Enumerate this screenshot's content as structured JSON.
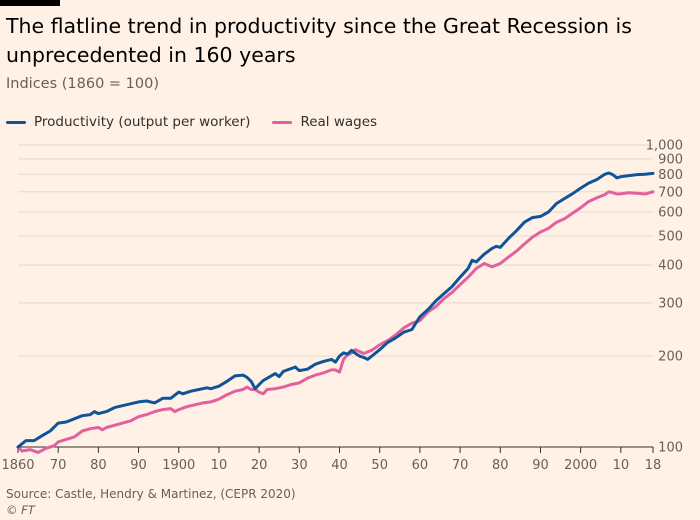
{
  "header": {
    "title": "The flatline trend in productivity since the Great Recession is unprecedented in 160 years",
    "subtitle": "Indices (1860 = 100)"
  },
  "footer": {
    "source": "Source: Castle, Hendry & Martinez, (CEPR 2020)",
    "credit": "© FT"
  },
  "colors": {
    "background": "#FFF1E5",
    "productivity": "#0F5499",
    "wages": "#E3609E",
    "grid": "#E6D9CE",
    "axis_text": "#66605C"
  },
  "chart_data": {
    "type": "line",
    "y_scale": "log",
    "ylim": [
      100,
      1000
    ],
    "xlim": [
      1860,
      2018
    ],
    "grid": "horizontal",
    "legend_position": "top-left",
    "x_tick_values": [
      1860,
      1870,
      1880,
      1890,
      1900,
      1910,
      1920,
      1930,
      1940,
      1950,
      1960,
      1970,
      1980,
      1990,
      2000,
      2010,
      2018
    ],
    "x_tick_labels": [
      "1860",
      "70",
      "80",
      "90",
      "1900",
      "10",
      "20",
      "30",
      "40",
      "50",
      "60",
      "70",
      "80",
      "90",
      "2000",
      "10",
      "18"
    ],
    "y_tick_values": [
      100,
      200,
      300,
      400,
      500,
      600,
      700,
      800,
      900,
      1000
    ],
    "y_tick_labels": [
      "100",
      "200",
      "300",
      "400",
      "500",
      "600",
      "700",
      "800",
      "900",
      "1,000"
    ],
    "series": [
      {
        "name": "Productivity (output per worker)",
        "color": "#0F5499",
        "points": [
          [
            1860,
            100
          ],
          [
            1862,
            105
          ],
          [
            1864,
            105
          ],
          [
            1866,
            109
          ],
          [
            1868,
            113
          ],
          [
            1870,
            120
          ],
          [
            1872,
            121
          ],
          [
            1874,
            124
          ],
          [
            1876,
            127
          ],
          [
            1878,
            128
          ],
          [
            1879,
            131
          ],
          [
            1880,
            129
          ],
          [
            1882,
            131
          ],
          [
            1884,
            135
          ],
          [
            1886,
            137
          ],
          [
            1888,
            139
          ],
          [
            1890,
            141
          ],
          [
            1892,
            142
          ],
          [
            1894,
            140
          ],
          [
            1896,
            145
          ],
          [
            1898,
            145
          ],
          [
            1900,
            152
          ],
          [
            1901,
            150
          ],
          [
            1903,
            153
          ],
          [
            1905,
            155
          ],
          [
            1907,
            157
          ],
          [
            1908,
            156
          ],
          [
            1910,
            159
          ],
          [
            1912,
            165
          ],
          [
            1914,
            172
          ],
          [
            1916,
            173
          ],
          [
            1917,
            170
          ],
          [
            1918,
            165
          ],
          [
            1919,
            156
          ],
          [
            1921,
            166
          ],
          [
            1923,
            172
          ],
          [
            1924,
            175
          ],
          [
            1925,
            171
          ],
          [
            1926,
            178
          ],
          [
            1928,
            182
          ],
          [
            1929,
            184
          ],
          [
            1930,
            179
          ],
          [
            1932,
            181
          ],
          [
            1934,
            188
          ],
          [
            1936,
            192
          ],
          [
            1938,
            195
          ],
          [
            1939,
            191
          ],
          [
            1940,
            200
          ],
          [
            1941,
            205
          ],
          [
            1942,
            203
          ],
          [
            1943,
            209
          ],
          [
            1944,
            204
          ],
          [
            1945,
            200
          ],
          [
            1946,
            198
          ],
          [
            1947,
            195
          ],
          [
            1948,
            200
          ],
          [
            1950,
            210
          ],
          [
            1952,
            222
          ],
          [
            1954,
            230
          ],
          [
            1956,
            240
          ],
          [
            1958,
            245
          ],
          [
            1960,
            270
          ],
          [
            1962,
            285
          ],
          [
            1964,
            305
          ],
          [
            1966,
            322
          ],
          [
            1968,
            340
          ],
          [
            1970,
            365
          ],
          [
            1972,
            390
          ],
          [
            1973,
            415
          ],
          [
            1974,
            410
          ],
          [
            1976,
            435
          ],
          [
            1978,
            455
          ],
          [
            1979,
            462
          ],
          [
            1980,
            458
          ],
          [
            1982,
            490
          ],
          [
            1984,
            520
          ],
          [
            1986,
            555
          ],
          [
            1988,
            575
          ],
          [
            1990,
            580
          ],
          [
            1992,
            600
          ],
          [
            1994,
            640
          ],
          [
            1996,
            665
          ],
          [
            1998,
            690
          ],
          [
            2000,
            720
          ],
          [
            2002,
            748
          ],
          [
            2004,
            768
          ],
          [
            2006,
            800
          ],
          [
            2007,
            808
          ],
          [
            2008,
            798
          ],
          [
            2009,
            778
          ],
          [
            2010,
            785
          ],
          [
            2012,
            792
          ],
          [
            2014,
            798
          ],
          [
            2016,
            800
          ],
          [
            2018,
            805
          ]
        ]
      },
      {
        "name": "Real wages",
        "color": "#E3609E",
        "points": [
          [
            1860,
            100
          ],
          [
            1861,
            97
          ],
          [
            1863,
            98
          ],
          [
            1865,
            96
          ],
          [
            1867,
            99
          ],
          [
            1869,
            101
          ],
          [
            1870,
            104
          ],
          [
            1872,
            106
          ],
          [
            1874,
            108
          ],
          [
            1876,
            113
          ],
          [
            1878,
            115
          ],
          [
            1880,
            116
          ],
          [
            1881,
            114
          ],
          [
            1882,
            116
          ],
          [
            1884,
            118
          ],
          [
            1886,
            120
          ],
          [
            1888,
            122
          ],
          [
            1890,
            126
          ],
          [
            1892,
            128
          ],
          [
            1894,
            131
          ],
          [
            1896,
            133
          ],
          [
            1898,
            134
          ],
          [
            1899,
            131
          ],
          [
            1900,
            133
          ],
          [
            1902,
            136
          ],
          [
            1904,
            138
          ],
          [
            1906,
            140
          ],
          [
            1908,
            141
          ],
          [
            1910,
            144
          ],
          [
            1912,
            149
          ],
          [
            1914,
            153
          ],
          [
            1916,
            155
          ],
          [
            1917,
            158
          ],
          [
            1918,
            155
          ],
          [
            1919,
            155
          ],
          [
            1920,
            152
          ],
          [
            1921,
            150
          ],
          [
            1922,
            155
          ],
          [
            1924,
            156
          ],
          [
            1926,
            158
          ],
          [
            1928,
            161
          ],
          [
            1930,
            163
          ],
          [
            1932,
            169
          ],
          [
            1934,
            173
          ],
          [
            1936,
            176
          ],
          [
            1938,
            180
          ],
          [
            1939,
            180
          ],
          [
            1940,
            177
          ],
          [
            1941,
            195
          ],
          [
            1942,
            202
          ],
          [
            1943,
            205
          ],
          [
            1944,
            210
          ],
          [
            1945,
            207
          ],
          [
            1946,
            204
          ],
          [
            1948,
            209
          ],
          [
            1950,
            218
          ],
          [
            1952,
            225
          ],
          [
            1954,
            235
          ],
          [
            1956,
            248
          ],
          [
            1958,
            257
          ],
          [
            1960,
            262
          ],
          [
            1962,
            280
          ],
          [
            1964,
            292
          ],
          [
            1966,
            310
          ],
          [
            1968,
            325
          ],
          [
            1970,
            345
          ],
          [
            1972,
            365
          ],
          [
            1974,
            390
          ],
          [
            1976,
            405
          ],
          [
            1977,
            400
          ],
          [
            1978,
            395
          ],
          [
            1980,
            405
          ],
          [
            1982,
            425
          ],
          [
            1984,
            445
          ],
          [
            1986,
            470
          ],
          [
            1988,
            495
          ],
          [
            1990,
            515
          ],
          [
            1992,
            530
          ],
          [
            1994,
            555
          ],
          [
            1996,
            570
          ],
          [
            1998,
            595
          ],
          [
            2000,
            620
          ],
          [
            2002,
            650
          ],
          [
            2004,
            668
          ],
          [
            2006,
            685
          ],
          [
            2007,
            700
          ],
          [
            2008,
            695
          ],
          [
            2009,
            688
          ],
          [
            2010,
            690
          ],
          [
            2012,
            695
          ],
          [
            2014,
            692
          ],
          [
            2016,
            688
          ],
          [
            2018,
            700
          ]
        ]
      }
    ]
  }
}
